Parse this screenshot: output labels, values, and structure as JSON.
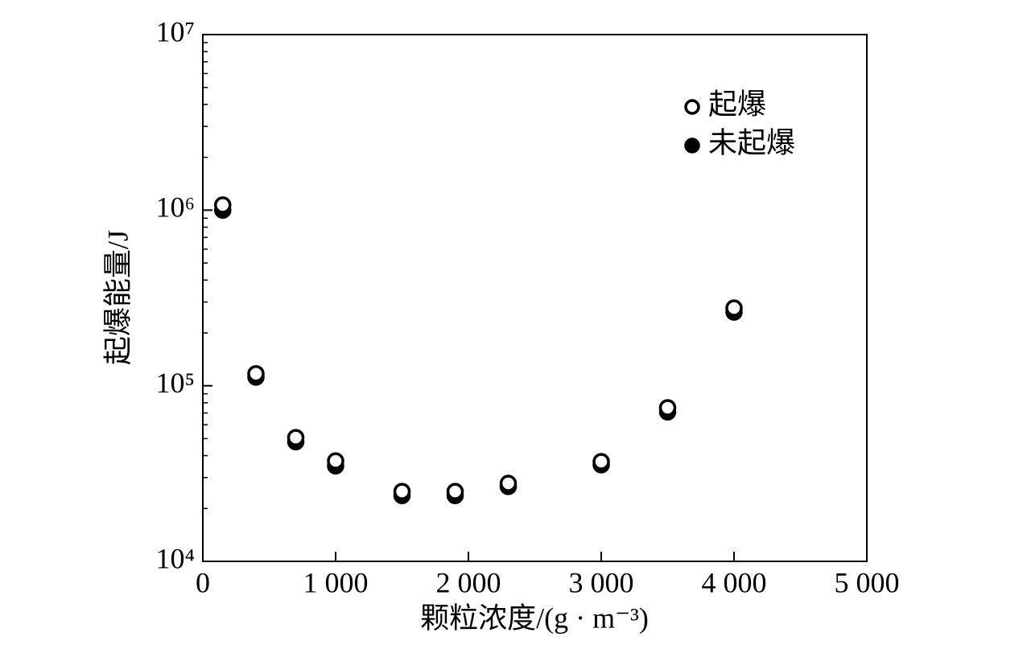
{
  "chart_data": {
    "type": "scatter",
    "xlabel": "颗粒浓度/(g · m⁻³)",
    "ylabel": "起爆能量/J",
    "x": [
      150,
      400,
      700,
      1000,
      1500,
      1900,
      2300,
      3000,
      3500,
      4000
    ],
    "series": [
      {
        "name": "起爆",
        "color": "#000000",
        "marker": "open",
        "values": [
          1070000,
          117000,
          50700,
          37300,
          25000,
          25000,
          27800,
          37000,
          75000,
          277000
        ]
      },
      {
        "name": "未起爆",
        "color": "#000000",
        "marker": "filled",
        "values": [
          1000000,
          112000,
          48000,
          35000,
          23700,
          23700,
          26700,
          35500,
          71000,
          263000
        ]
      }
    ],
    "xlim": [
      0,
      5000
    ],
    "xticks": [
      0,
      {
        "value": 1000,
        "label": "1 000"
      },
      {
        "value": 2000,
        "label": "2 000"
      },
      {
        "value": 3000,
        "label": "3 000"
      },
      {
        "value": 4000,
        "label": "4 000"
      },
      {
        "value": 5000,
        "label": "5 000"
      }
    ],
    "ylim": [
      10000,
      10000000
    ],
    "yscale": "log",
    "yticks": [
      {
        "value": 10000,
        "label": "10⁴"
      },
      {
        "value": 100000,
        "label": "10⁵"
      },
      {
        "value": 1000000,
        "label": "10⁶"
      },
      {
        "value": 10000000,
        "label": "10⁷"
      }
    ],
    "yminor_ticks": [
      20000,
      30000,
      40000,
      50000,
      60000,
      70000,
      80000,
      90000,
      200000,
      300000,
      400000,
      500000,
      600000,
      700000,
      800000,
      900000,
      2000000,
      3000000,
      4000000,
      5000000,
      6000000,
      7000000,
      8000000,
      9000000
    ],
    "grid": false,
    "legend": "upper right"
  }
}
